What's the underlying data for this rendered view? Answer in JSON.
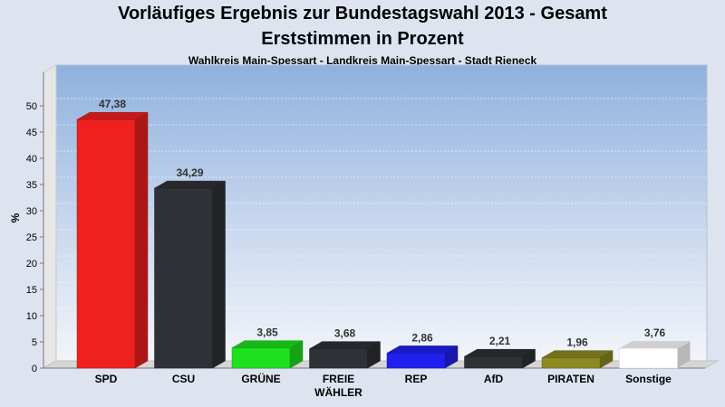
{
  "chart_data": {
    "type": "bar",
    "title": "Vorläufiges Ergebnis zur Bundestagswahl 2013 - Gesamt",
    "title_line2": "Erststimmen in Prozent",
    "subtitle": "Wahlkreis Main-Spessart - Landkreis Main-Spessart - Stadt Rieneck",
    "ylabel": "%",
    "xlabel": "",
    "ylim": [
      0,
      55
    ],
    "yticks": [
      0,
      5,
      10,
      15,
      20,
      25,
      30,
      35,
      40,
      45,
      50
    ],
    "grid": true,
    "categories": [
      [
        "SPD"
      ],
      [
        "CSU"
      ],
      [
        "GRÜNE"
      ],
      [
        "FREIE",
        "WÄHLER"
      ],
      [
        "REP"
      ],
      [
        "AfD"
      ],
      [
        "PIRATEN"
      ],
      [
        "Sonstige"
      ]
    ],
    "values": [
      47.38,
      34.29,
      3.85,
      3.68,
      2.86,
      2.21,
      1.96,
      3.76
    ],
    "value_labels": [
      "47,38",
      "34,29",
      "3,85",
      "3,68",
      "2,86",
      "2,21",
      "1,96",
      "3,76"
    ],
    "colors": [
      "#ee2020",
      "#2e3136",
      "#1ee01e",
      "#2e3136",
      "#2020ee",
      "#2e3136",
      "#8c8a20",
      "#ffffff"
    ]
  }
}
